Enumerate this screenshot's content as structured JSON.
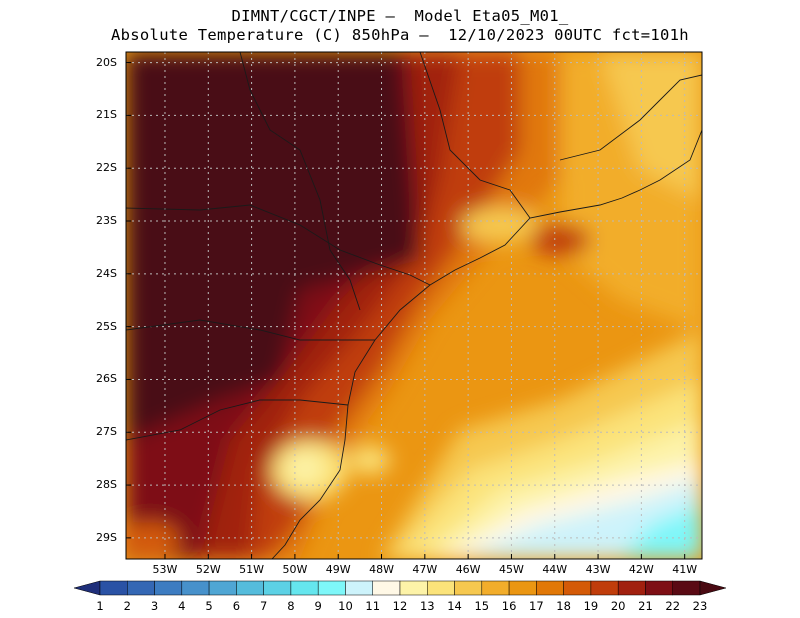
{
  "title": {
    "line1": "DIMNT/CGCT/INPE –  Model Eta05_M01_",
    "line2": "Absolute Temperature (C) 850hPa –  12/10/2023 00UTC fct=101h"
  },
  "map": {
    "lat_labels": [
      "20S",
      "21S",
      "22S",
      "23S",
      "24S",
      "25S",
      "26S",
      "27S",
      "28S",
      "29S"
    ],
    "lon_labels": [
      "53W",
      "52W",
      "51W",
      "50W",
      "49W",
      "48W",
      "47W",
      "46W",
      "45W",
      "44W",
      "43W",
      "42W",
      "41W"
    ],
    "lat_range": [
      -29.4,
      -19.8
    ],
    "lon_range": [
      -53.9,
      -40.6
    ],
    "field": "temperature_850hPa"
  },
  "colorbar": {
    "labels": [
      "1",
      "2",
      "3",
      "4",
      "5",
      "6",
      "7",
      "8",
      "9",
      "10",
      "11",
      "12",
      "13",
      "14",
      "15",
      "16",
      "17",
      "18",
      "19",
      "20",
      "21",
      "22",
      "23"
    ],
    "colors": [
      "#2a3f8f",
      "#2a52a5",
      "#3467b4",
      "#3d7cc1",
      "#4791cb",
      "#4fa6d4",
      "#55bcdc",
      "#5cd1e5",
      "#65e6ee",
      "#7ef7f9",
      "#cdf3fb",
      "#fff8e6",
      "#fdf3a8",
      "#fbe37a",
      "#f6c84f",
      "#f2ad2b",
      "#eb9612",
      "#e17807",
      "#d45a07",
      "#c03d0b",
      "#a1200f",
      "#7e0f15",
      "#5a0a14"
    ],
    "under_color": "#1f2f7a",
    "over_color": "#4a0a12"
  }
}
